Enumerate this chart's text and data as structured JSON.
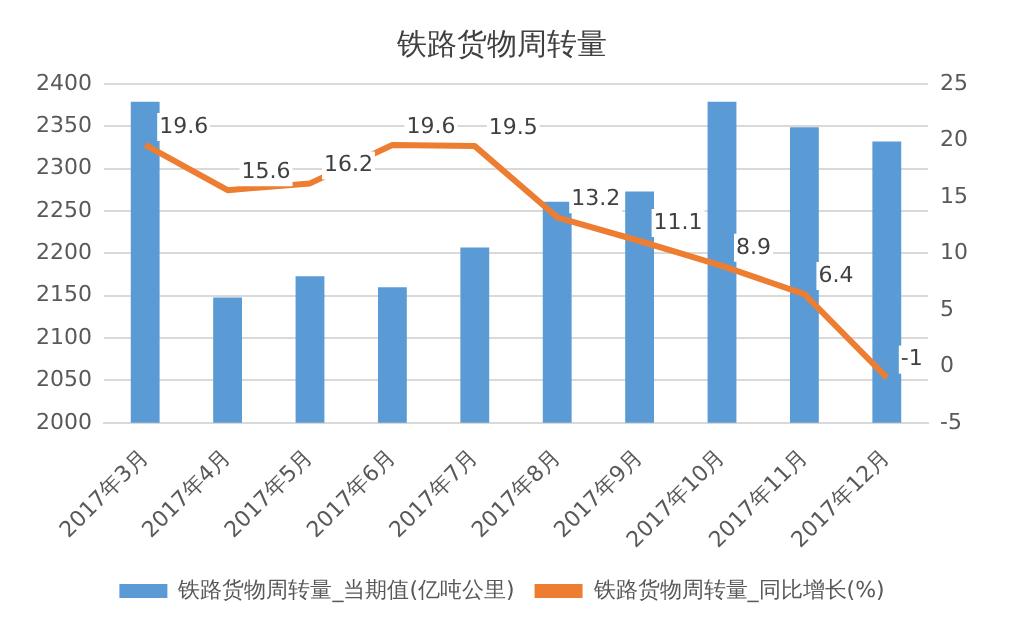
{
  "chart_data": {
    "type": "bar",
    "title": "铁路货物周转量",
    "categories": [
      "2017年3月",
      "2017年4月",
      "2017年5月",
      "2017年6月",
      "2017年7月",
      "2017年8月",
      "2017年9月",
      "2017年10月",
      "2017年11月",
      "2017年12月"
    ],
    "series": [
      {
        "name": "铁路货物周转量_当期值(亿吨公里)",
        "color": "#5b9bd5",
        "values": [
          2379,
          2148,
          2173,
          2160,
          2207,
          2261,
          2273,
          2379,
          2349,
          2332
        ]
      },
      {
        "name": "铁路货物周转量_同比增长(%)",
        "type": "line",
        "axis": "y2",
        "color": "#ed7d31",
        "values": [
          19.6,
          15.6,
          16.2,
          19.6,
          19.5,
          13.2,
          11.1,
          8.9,
          6.4,
          -1
        ],
        "value_labels": [
          "19.6",
          "15.6",
          "16.2",
          "19.6",
          "19.5",
          "13.2",
          "11.1",
          "8.9",
          "6.4",
          "-1"
        ]
      }
    ],
    "ylim": [
      2000,
      2400
    ],
    "yticks": [
      2000,
      2050,
      2100,
      2150,
      2200,
      2250,
      2300,
      2350,
      2400
    ],
    "y2lim": [
      -5,
      25
    ],
    "y2ticks": [
      -5,
      0,
      5,
      10,
      15,
      20,
      25
    ],
    "grid": "y",
    "legend": "bottom",
    "marker": "none"
  }
}
